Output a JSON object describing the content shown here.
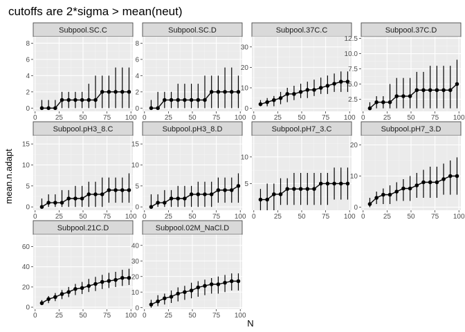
{
  "title": "cutoffs are 2*sigma > mean(neut)",
  "chart_data": {
    "type": "line",
    "title": "cutoffs are 2*sigma > mean(neut)",
    "xlabel": "N",
    "ylabel": "mean.n.adapt",
    "x": [
      7,
      14,
      21,
      28,
      35,
      42,
      49,
      56,
      63,
      70,
      77,
      84,
      91,
      98
    ],
    "xlim": [
      -2,
      102
    ],
    "xticks": [
      0,
      25,
      50,
      75,
      100
    ],
    "grid": true,
    "legend": "none",
    "colors": {
      "panel_bg": "#ebebeb",
      "strip_bg": "#d9d9d9",
      "grid_major": "#ffffff",
      "grid_minor": "#f4f4f4",
      "line": "#000000"
    },
    "panels": [
      {
        "name": "Subpool.SC.C",
        "ylim": [
          -0.4,
          8.8
        ],
        "yticks": [
          0,
          2,
          4,
          6,
          8
        ],
        "y": [
          0,
          0,
          0,
          1,
          1,
          1,
          1,
          1,
          1,
          2,
          2,
          2,
          2,
          2
        ],
        "ymin": [
          0,
          0,
          0,
          0,
          0,
          0,
          0,
          0,
          0,
          0,
          0,
          0,
          0,
          0
        ],
        "ymax": [
          1,
          1,
          1,
          2,
          2,
          2,
          2,
          3,
          4,
          4,
          4,
          5,
          5,
          5
        ]
      },
      {
        "name": "Subpool.SC.D",
        "ylim": [
          -0.4,
          8.8
        ],
        "yticks": [
          0,
          2,
          4,
          6,
          8
        ],
        "y": [
          0,
          0,
          1,
          1,
          1,
          1,
          1,
          1,
          1,
          2,
          2,
          2,
          2,
          2
        ],
        "ymin": [
          0,
          0,
          0,
          0,
          0,
          0,
          0,
          0,
          0,
          0,
          0,
          0,
          0,
          0
        ],
        "ymax": [
          1,
          2,
          2,
          2,
          3,
          3,
          3,
          3,
          4,
          4,
          4,
          5,
          5,
          4
        ]
      },
      {
        "name": "Subpool.37C.C",
        "ylim": [
          -1.5,
          35
        ],
        "yticks": [
          0,
          10,
          20,
          30
        ],
        "y": [
          2,
          3,
          4,
          5,
          7,
          7,
          8,
          9,
          9,
          10,
          11,
          12,
          13,
          13
        ],
        "ymin": [
          1,
          1,
          1,
          2,
          3,
          4,
          5,
          5,
          6,
          7,
          7,
          8,
          8,
          8
        ],
        "ymax": [
          4,
          5,
          6,
          8,
          10,
          11,
          12,
          13,
          14,
          15,
          16,
          17,
          18,
          18
        ]
      },
      {
        "name": "Subpool.37C.D",
        "ylim": [
          0.5,
          12.8
        ],
        "yticks": [
          2.5,
          5.0,
          7.5,
          10.0,
          12.5
        ],
        "y": [
          1,
          2,
          2,
          2,
          3,
          3,
          3,
          4,
          4,
          4,
          4,
          4,
          4,
          5
        ],
        "ymin": [
          1,
          1,
          1,
          1,
          1,
          1,
          1,
          1,
          1,
          1,
          1,
          1,
          1,
          1
        ],
        "ymax": [
          2,
          3,
          3,
          5,
          6,
          6,
          6,
          7,
          7,
          8,
          8,
          8,
          8,
          9
        ]
      },
      {
        "name": "Subpool.pH3_8.C",
        "ylim": [
          -0.8,
          17
        ],
        "yticks": [
          0,
          5,
          10,
          15
        ],
        "y": [
          0,
          1,
          1,
          1,
          2,
          2,
          2,
          3,
          3,
          3,
          4,
          4,
          4,
          4
        ],
        "ymin": [
          0,
          0,
          0,
          0,
          0,
          0,
          0,
          0,
          0,
          0,
          1,
          1,
          1,
          1
        ],
        "ymax": [
          2,
          3,
          3,
          4,
          4,
          5,
          5,
          6,
          6,
          7,
          7,
          7,
          7,
          8
        ]
      },
      {
        "name": "Subpool.pH3_8.D",
        "ylim": [
          -0.8,
          17
        ],
        "yticks": [
          0,
          5,
          10,
          15
        ],
        "y": [
          0,
          1,
          1,
          2,
          2,
          2,
          3,
          3,
          3,
          3,
          4,
          4,
          4,
          5
        ],
        "ymin": [
          0,
          0,
          0,
          0,
          0,
          0,
          0,
          0,
          0,
          0,
          1,
          1,
          1,
          1
        ],
        "ymax": [
          3,
          3,
          4,
          4,
          5,
          5,
          5,
          6,
          6,
          6,
          7,
          7,
          7,
          8
        ]
      },
      {
        "name": "Subpool.pH7_3.C",
        "ylim": [
          0,
          14
        ],
        "yticks": [
          5,
          10
        ],
        "y": [
          2,
          2,
          3,
          3,
          4,
          4,
          4,
          4,
          4,
          5,
          5,
          5,
          5,
          5
        ],
        "ymin": [
          0,
          0,
          0,
          1,
          1,
          1,
          1,
          1,
          1,
          1,
          1,
          2,
          2,
          2
        ],
        "ymax": [
          4,
          5,
          5,
          6,
          6,
          7,
          7,
          7,
          7,
          7,
          7,
          8,
          8,
          8
        ]
      },
      {
        "name": "Subpool.pH7_3.D",
        "ylim": [
          -1,
          23
        ],
        "yticks": [
          0,
          10,
          20
        ],
        "y": [
          1,
          3,
          4,
          4,
          5,
          6,
          6,
          7,
          8,
          8,
          8,
          9,
          10,
          10
        ],
        "ymin": [
          0,
          1,
          1,
          1,
          2,
          2,
          2,
          3,
          3,
          3,
          3,
          4,
          4,
          4
        ],
        "ymax": [
          3,
          5,
          6,
          7,
          8,
          9,
          10,
          11,
          12,
          13,
          13,
          14,
          15,
          16
        ]
      },
      {
        "name": "Subpool.21C.D",
        "ylim": [
          -2,
          72
        ],
        "yticks": [
          0,
          20,
          40,
          60
        ],
        "y": [
          4,
          8,
          10,
          13,
          15,
          18,
          19,
          21,
          23,
          25,
          26,
          27,
          29,
          29
        ],
        "ymin": [
          2,
          4,
          6,
          8,
          10,
          12,
          13,
          15,
          16,
          18,
          19,
          20,
          21,
          22
        ],
        "ymax": [
          7,
          11,
          14,
          17,
          20,
          23,
          25,
          28,
          30,
          32,
          34,
          35,
          37,
          38
        ]
      },
      {
        "name": "Subpool.02M_NaCl.D",
        "ylim": [
          -1,
          47
        ],
        "yticks": [
          0,
          10,
          20,
          30,
          40
        ],
        "y": [
          2,
          4,
          6,
          7,
          9,
          10,
          11,
          13,
          14,
          15,
          15,
          16,
          17,
          17
        ],
        "ymin": [
          0,
          1,
          2,
          3,
          4,
          5,
          6,
          7,
          8,
          9,
          9,
          10,
          11,
          11
        ],
        "ymax": [
          5,
          8,
          9,
          11,
          13,
          14,
          16,
          17,
          18,
          19,
          20,
          21,
          22,
          22
        ]
      }
    ]
  }
}
